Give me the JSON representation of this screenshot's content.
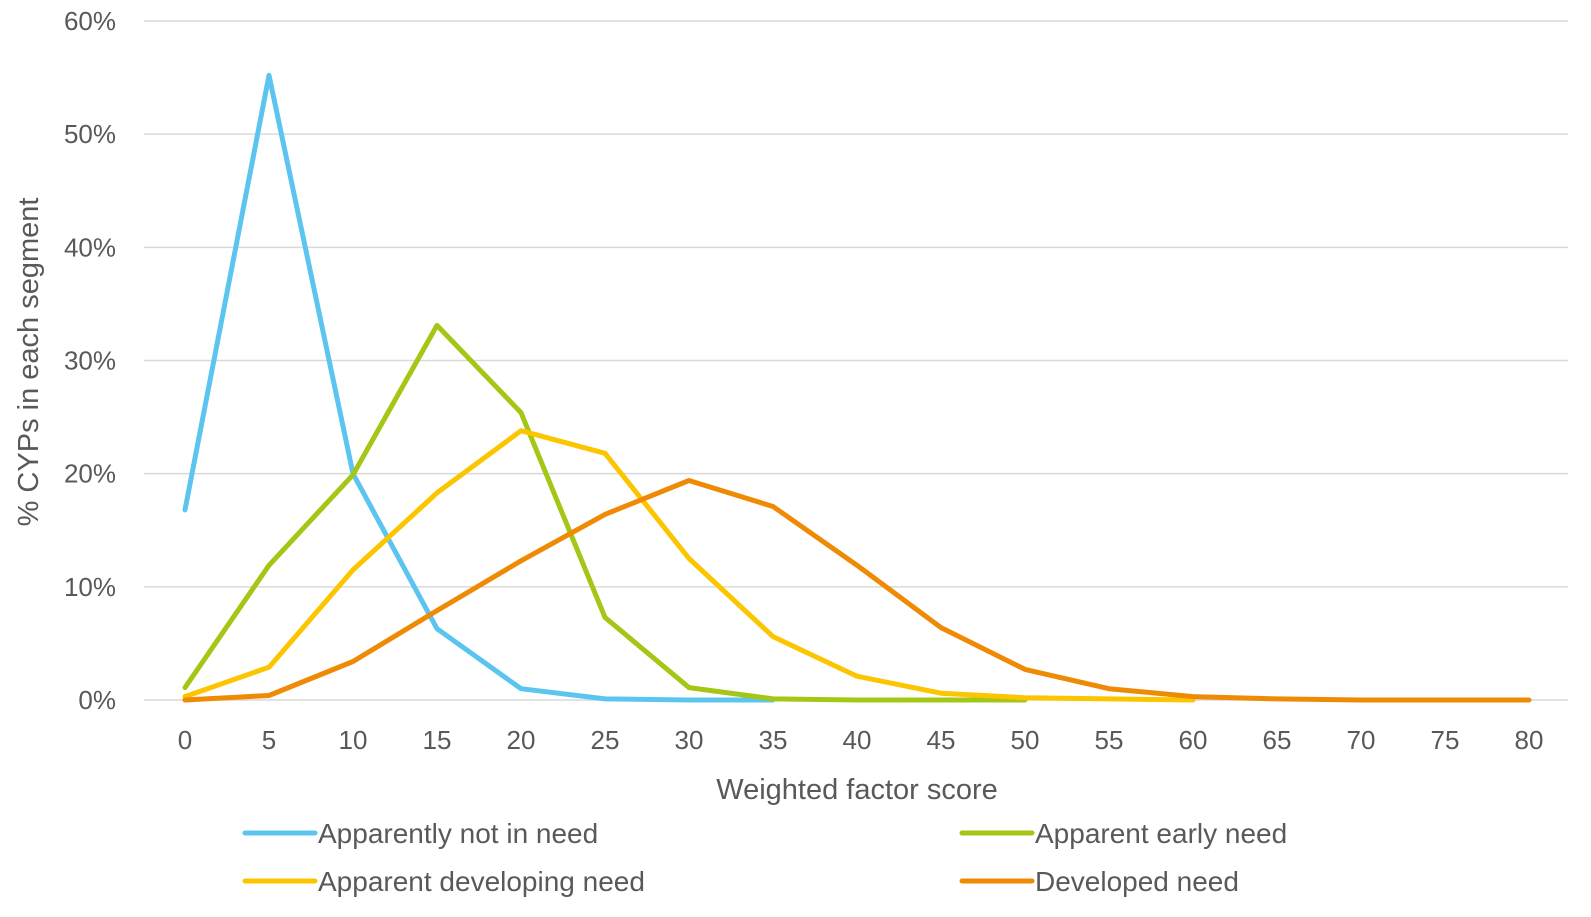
{
  "chart_data": {
    "type": "line",
    "title": "",
    "xlabel": "Weighted factor score",
    "ylabel": "% CYPs in each segment",
    "x": [
      0,
      5,
      10,
      15,
      20,
      25,
      30,
      35,
      40,
      45,
      50,
      55,
      60,
      65,
      70,
      75,
      80
    ],
    "x_tick_labels": [
      "0",
      "5",
      "10",
      "15",
      "20",
      "25",
      "30",
      "35",
      "40",
      "45",
      "50",
      "55",
      "60",
      "65",
      "70",
      "75",
      "80"
    ],
    "ylim": [
      0,
      60
    ],
    "y_ticks": [
      0,
      10,
      20,
      30,
      40,
      50,
      60
    ],
    "y_tick_labels": [
      "0%",
      "10%",
      "20%",
      "30%",
      "40%",
      "50%",
      "60%"
    ],
    "grid": "horizontal",
    "legend_position": "bottom",
    "series": [
      {
        "name": "Apparently not in need",
        "color": "#5bc5f0",
        "x": [
          0,
          5,
          10,
          15,
          20,
          25,
          30,
          35
        ],
        "values": [
          16.8,
          55.2,
          20.0,
          6.3,
          1.0,
          0.1,
          0.0,
          0.0
        ]
      },
      {
        "name": "Apparent early need",
        "color": "#a4c615",
        "x": [
          0,
          5,
          10,
          15,
          20,
          25,
          30,
          35,
          40,
          45,
          50
        ],
        "values": [
          1.1,
          11.9,
          19.9,
          33.1,
          25.4,
          7.3,
          1.1,
          0.1,
          0.0,
          0.0,
          0.0
        ]
      },
      {
        "name": "Apparent developing need",
        "color": "#fcc500",
        "x": [
          0,
          5,
          10,
          15,
          20,
          25,
          30,
          35,
          40,
          45,
          50,
          55,
          60
        ],
        "values": [
          0.3,
          2.9,
          11.5,
          18.3,
          23.8,
          21.8,
          12.5,
          5.6,
          2.1,
          0.6,
          0.2,
          0.1,
          0.0
        ]
      },
      {
        "name": "Developed need",
        "color": "#ef8a05",
        "x": [
          0,
          5,
          10,
          15,
          20,
          25,
          30,
          35,
          40,
          45,
          50,
          55,
          60,
          65,
          70,
          75,
          80
        ],
        "values": [
          0.0,
          0.4,
          3.4,
          7.9,
          12.3,
          16.4,
          19.4,
          17.1,
          11.9,
          6.4,
          2.7,
          1.0,
          0.3,
          0.1,
          0.0,
          0.0,
          0.0
        ]
      }
    ]
  }
}
